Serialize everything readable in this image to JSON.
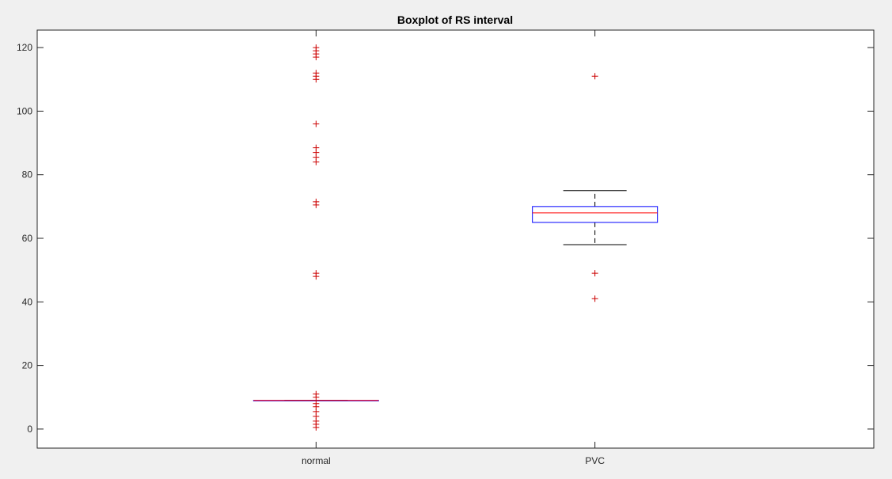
{
  "chart_data": {
    "type": "boxplot",
    "title": "Boxplot of RS interval",
    "xlabel": "",
    "ylabel": "",
    "ylim": [
      -6,
      125.5
    ],
    "yticks": [
      0,
      20,
      40,
      60,
      80,
      100,
      120
    ],
    "grid": false,
    "categories": [
      "normal",
      "PVC"
    ],
    "boxes": [
      {
        "category": "normal",
        "q1": 9,
        "median": 9,
        "q3": 9,
        "whisker_low": 9,
        "whisker_high": 9,
        "outliers": [
          0.5,
          1.5,
          2.5,
          4,
          5.5,
          7,
          8,
          10,
          11,
          48,
          49,
          70.5,
          71.5,
          84,
          85.5,
          87,
          88.5,
          96,
          110,
          111,
          112,
          117,
          118,
          119,
          120
        ]
      },
      {
        "category": "PVC",
        "q1": 65,
        "median": 68,
        "q3": 70,
        "whisker_low": 58,
        "whisker_high": 75,
        "outliers": [
          41,
          49,
          111
        ]
      }
    ]
  },
  "colors": {
    "box": "#0000ff",
    "median": "#ff0000",
    "whisker": "#000000",
    "outlier": "#cc0000",
    "axes": "#262626",
    "figure_bg": "#f0f0f0",
    "axes_bg": "#ffffff"
  }
}
